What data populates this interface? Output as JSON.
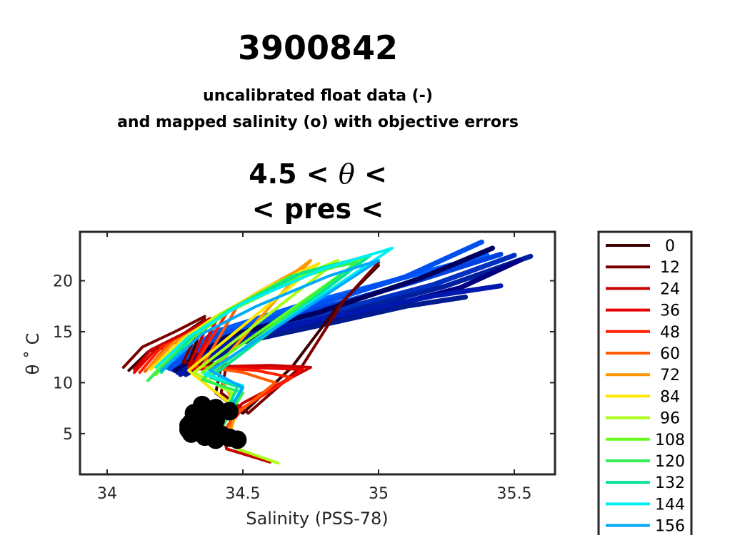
{
  "header": {
    "title": "3900842",
    "subtitle_line1": "uncalibrated float data (-)",
    "subtitle_line2": "and mapped salinity (o) with objective errors",
    "plot_title_line1_left": "4.5 < ",
    "plot_title_line1_symbol": "θ",
    "plot_title_line1_right": " <",
    "plot_title_line2": "< pres <"
  },
  "chart_data": {
    "type": "line",
    "title": "",
    "xlabel": "Salinity (PSS-78)",
    "ylabel": "θ ˚ C",
    "xlim": [
      33.9,
      35.65
    ],
    "ylim": [
      1.0,
      24.8
    ],
    "xticks": [
      34,
      34.5,
      35,
      35.5
    ],
    "xtick_labels": [
      "34",
      "34.5",
      "35",
      "35.5"
    ],
    "yticks": [
      5,
      10,
      15,
      20
    ],
    "ytick_labels": [
      "5",
      "10",
      "15",
      "20"
    ],
    "grid": false,
    "legend_position": "right",
    "colors": {
      "0": "#3b0000",
      "12": "#7a0000",
      "24": "#c80000",
      "36": "#e60000",
      "48": "#ff2000",
      "60": "#ff5a00",
      "72": "#ff9600",
      "84": "#ffe600",
      "96": "#aaff14",
      "108": "#64ff1e",
      "120": "#32f050",
      "132": "#00e696",
      "144": "#00f0f0",
      "156": "#00aaff"
    },
    "mapped_salinity_color": "#000000",
    "series": [
      {
        "name": "0",
        "x": [
          34.08,
          34.15,
          34.27,
          34.36,
          34.3,
          34.42,
          34.4,
          34.5,
          34.68,
          34.85,
          35.0
        ],
        "y": [
          11.2,
          13.0,
          14.6,
          16.2,
          12.0,
          11.6,
          9.0,
          7.0,
          11.5,
          17.5,
          21.5
        ]
      },
      {
        "name": "12",
        "x": [
          34.06,
          34.13,
          34.25,
          34.36,
          34.28,
          34.44,
          34.42,
          34.52,
          34.72,
          34.87,
          35.0
        ],
        "y": [
          11.5,
          13.5,
          15.0,
          16.5,
          12.0,
          11.8,
          9.0,
          7.0,
          11.7,
          18.0,
          21.8
        ]
      },
      {
        "name": "24",
        "x": [
          34.1,
          34.16,
          34.28,
          34.38,
          34.3,
          34.6,
          34.75,
          34.5,
          34.42,
          34.44,
          34.6
        ],
        "y": [
          11.3,
          13.2,
          14.8,
          16.3,
          11.5,
          11.7,
          11.5,
          8.0,
          6.0,
          3.5,
          2.2
        ]
      },
      {
        "name": "36",
        "x": [
          34.1,
          34.17,
          34.3,
          34.4,
          34.31,
          34.5,
          34.72,
          34.5,
          34.44,
          34.48
        ],
        "y": [
          11.0,
          13.0,
          14.5,
          16.0,
          11.3,
          11.5,
          11.3,
          7.5,
          5.5,
          3.5
        ]
      },
      {
        "name": "48",
        "x": [
          34.12,
          34.2,
          34.32,
          34.44,
          34.32,
          34.55,
          34.68,
          34.48,
          34.43
        ],
        "y": [
          11.0,
          13.5,
          15.0,
          16.8,
          11.6,
          11.2,
          10.5,
          7.2,
          5.2
        ]
      },
      {
        "name": "60",
        "x": [
          34.14,
          34.22,
          34.35,
          34.48,
          34.35,
          34.5,
          34.62,
          34.48,
          34.4
        ],
        "y": [
          11.1,
          13.6,
          15.3,
          17.5,
          11.6,
          11.0,
          10.0,
          7.0,
          4.0
        ]
      },
      {
        "name": "72",
        "x": [
          34.15,
          34.25,
          34.38,
          34.55,
          34.7,
          34.75,
          34.4,
          34.48,
          34.45
        ],
        "y": [
          11.4,
          14.0,
          16.0,
          18.8,
          21.0,
          22.0,
          11.4,
          7.4,
          5.0
        ]
      },
      {
        "name": "84",
        "x": [
          34.16,
          34.28,
          34.4,
          34.6,
          34.78,
          34.3,
          34.45
        ],
        "y": [
          11.3,
          14.3,
          16.5,
          19.5,
          21.7,
          11.2,
          8.0
        ]
      },
      {
        "name": "96",
        "x": [
          34.16,
          34.3,
          34.42,
          34.65,
          34.85,
          34.32,
          34.46,
          34.42,
          34.48,
          34.63
        ],
        "y": [
          10.5,
          14.5,
          16.8,
          19.8,
          22.0,
          11.0,
          9.0,
          6.0,
          3.5,
          2.1
        ]
      },
      {
        "name": "108",
        "x": [
          34.18,
          34.32,
          34.45,
          34.7,
          34.95,
          34.35,
          34.5,
          34.4
        ],
        "y": [
          10.8,
          14.5,
          17.0,
          20.2,
          22.3,
          11.0,
          9.5,
          5.0
        ]
      },
      {
        "name": "120",
        "x": [
          34.15,
          34.3,
          34.44,
          34.68,
          34.92,
          34.35,
          34.5,
          34.42
        ],
        "y": [
          10.2,
          14.2,
          17.0,
          20.5,
          21.8,
          10.3,
          9.0,
          5.5
        ]
      },
      {
        "name": "132",
        "x": [
          34.2,
          34.32,
          34.48,
          34.72,
          34.97,
          34.38,
          34.48,
          34.42
        ],
        "y": [
          11.0,
          14.8,
          17.5,
          20.8,
          22.5,
          10.5,
          9.6,
          6.0
        ]
      },
      {
        "name": "144",
        "x": [
          34.18,
          34.3,
          34.5,
          34.8,
          35.05,
          34.36,
          34.5,
          34.42
        ],
        "y": [
          11.5,
          14.5,
          17.8,
          21.2,
          23.2,
          10.8,
          9.7,
          5.8
        ]
      },
      {
        "name": "156",
        "x": [
          34.2,
          34.35,
          34.55,
          34.82,
          35.0,
          34.38,
          34.5,
          34.42
        ],
        "y": [
          11.2,
          14.8,
          17.5,
          20.5,
          22.0,
          11.2,
          9.5,
          6.0
        ]
      }
    ],
    "extra_profiles": [
      {
        "color": "#0060ff",
        "x": [
          34.22,
          34.4,
          34.7,
          35.05,
          35.4
        ],
        "y": [
          11.5,
          15.0,
          17.5,
          20.0,
          22.5
        ]
      },
      {
        "color": "#0040e0",
        "x": [
          34.24,
          34.42,
          34.75,
          35.12,
          35.45
        ],
        "y": [
          11.3,
          14.8,
          17.0,
          19.8,
          22.6
        ]
      },
      {
        "color": "#0030c0",
        "x": [
          34.25,
          34.45,
          34.8,
          35.2,
          35.5
        ],
        "y": [
          11.2,
          14.5,
          16.8,
          19.6,
          22.5
        ]
      },
      {
        "color": "#0020a0",
        "x": [
          34.26,
          34.46,
          34.82,
          35.25,
          35.56
        ],
        "y": [
          11.0,
          14.3,
          16.5,
          19.5,
          22.4
        ]
      },
      {
        "color": "#000080",
        "x": [
          34.28,
          34.48,
          34.85,
          35.3,
          35.52
        ],
        "y": [
          11.0,
          14.0,
          16.2,
          19.3,
          22.0
        ]
      },
      {
        "color": "#000060",
        "x": [
          34.25,
          34.44,
          34.78,
          35.15,
          35.42
        ],
        "y": [
          11.2,
          14.6,
          16.9,
          20.2,
          23.2
        ]
      },
      {
        "color": "#0050f0",
        "x": [
          34.23,
          34.43,
          34.72,
          35.1,
          35.38
        ],
        "y": [
          11.4,
          14.9,
          17.2,
          20.4,
          23.8
        ]
      },
      {
        "color": "#0018b0",
        "x": [
          34.27,
          34.47,
          34.8,
          35.2,
          35.45
        ],
        "y": [
          10.8,
          14.2,
          16.3,
          18.5,
          19.5
        ]
      },
      {
        "color": "#001a90",
        "x": [
          34.29,
          34.5,
          34.85,
          35.1,
          35.32
        ],
        "y": [
          10.8,
          14.0,
          16.0,
          17.5,
          18.4
        ]
      }
    ],
    "mapped_salinity_points": [
      {
        "x": 34.35,
        "y": 7.8
      },
      {
        "x": 34.4,
        "y": 7.5
      },
      {
        "x": 34.45,
        "y": 7.2
      },
      {
        "x": 34.32,
        "y": 7.0
      },
      {
        "x": 34.38,
        "y": 6.8
      },
      {
        "x": 34.34,
        "y": 6.5
      },
      {
        "x": 34.4,
        "y": 6.3
      },
      {
        "x": 34.31,
        "y": 6.1
      },
      {
        "x": 34.36,
        "y": 6.0
      },
      {
        "x": 34.3,
        "y": 5.8
      },
      {
        "x": 34.35,
        "y": 5.6
      },
      {
        "x": 34.3,
        "y": 5.4
      },
      {
        "x": 34.34,
        "y": 5.3
      },
      {
        "x": 34.38,
        "y": 5.1
      },
      {
        "x": 34.31,
        "y": 5.0
      },
      {
        "x": 34.42,
        "y": 4.9
      },
      {
        "x": 34.36,
        "y": 4.7
      },
      {
        "x": 34.45,
        "y": 4.6
      },
      {
        "x": 34.4,
        "y": 4.4
      },
      {
        "x": 34.48,
        "y": 4.4
      }
    ]
  }
}
